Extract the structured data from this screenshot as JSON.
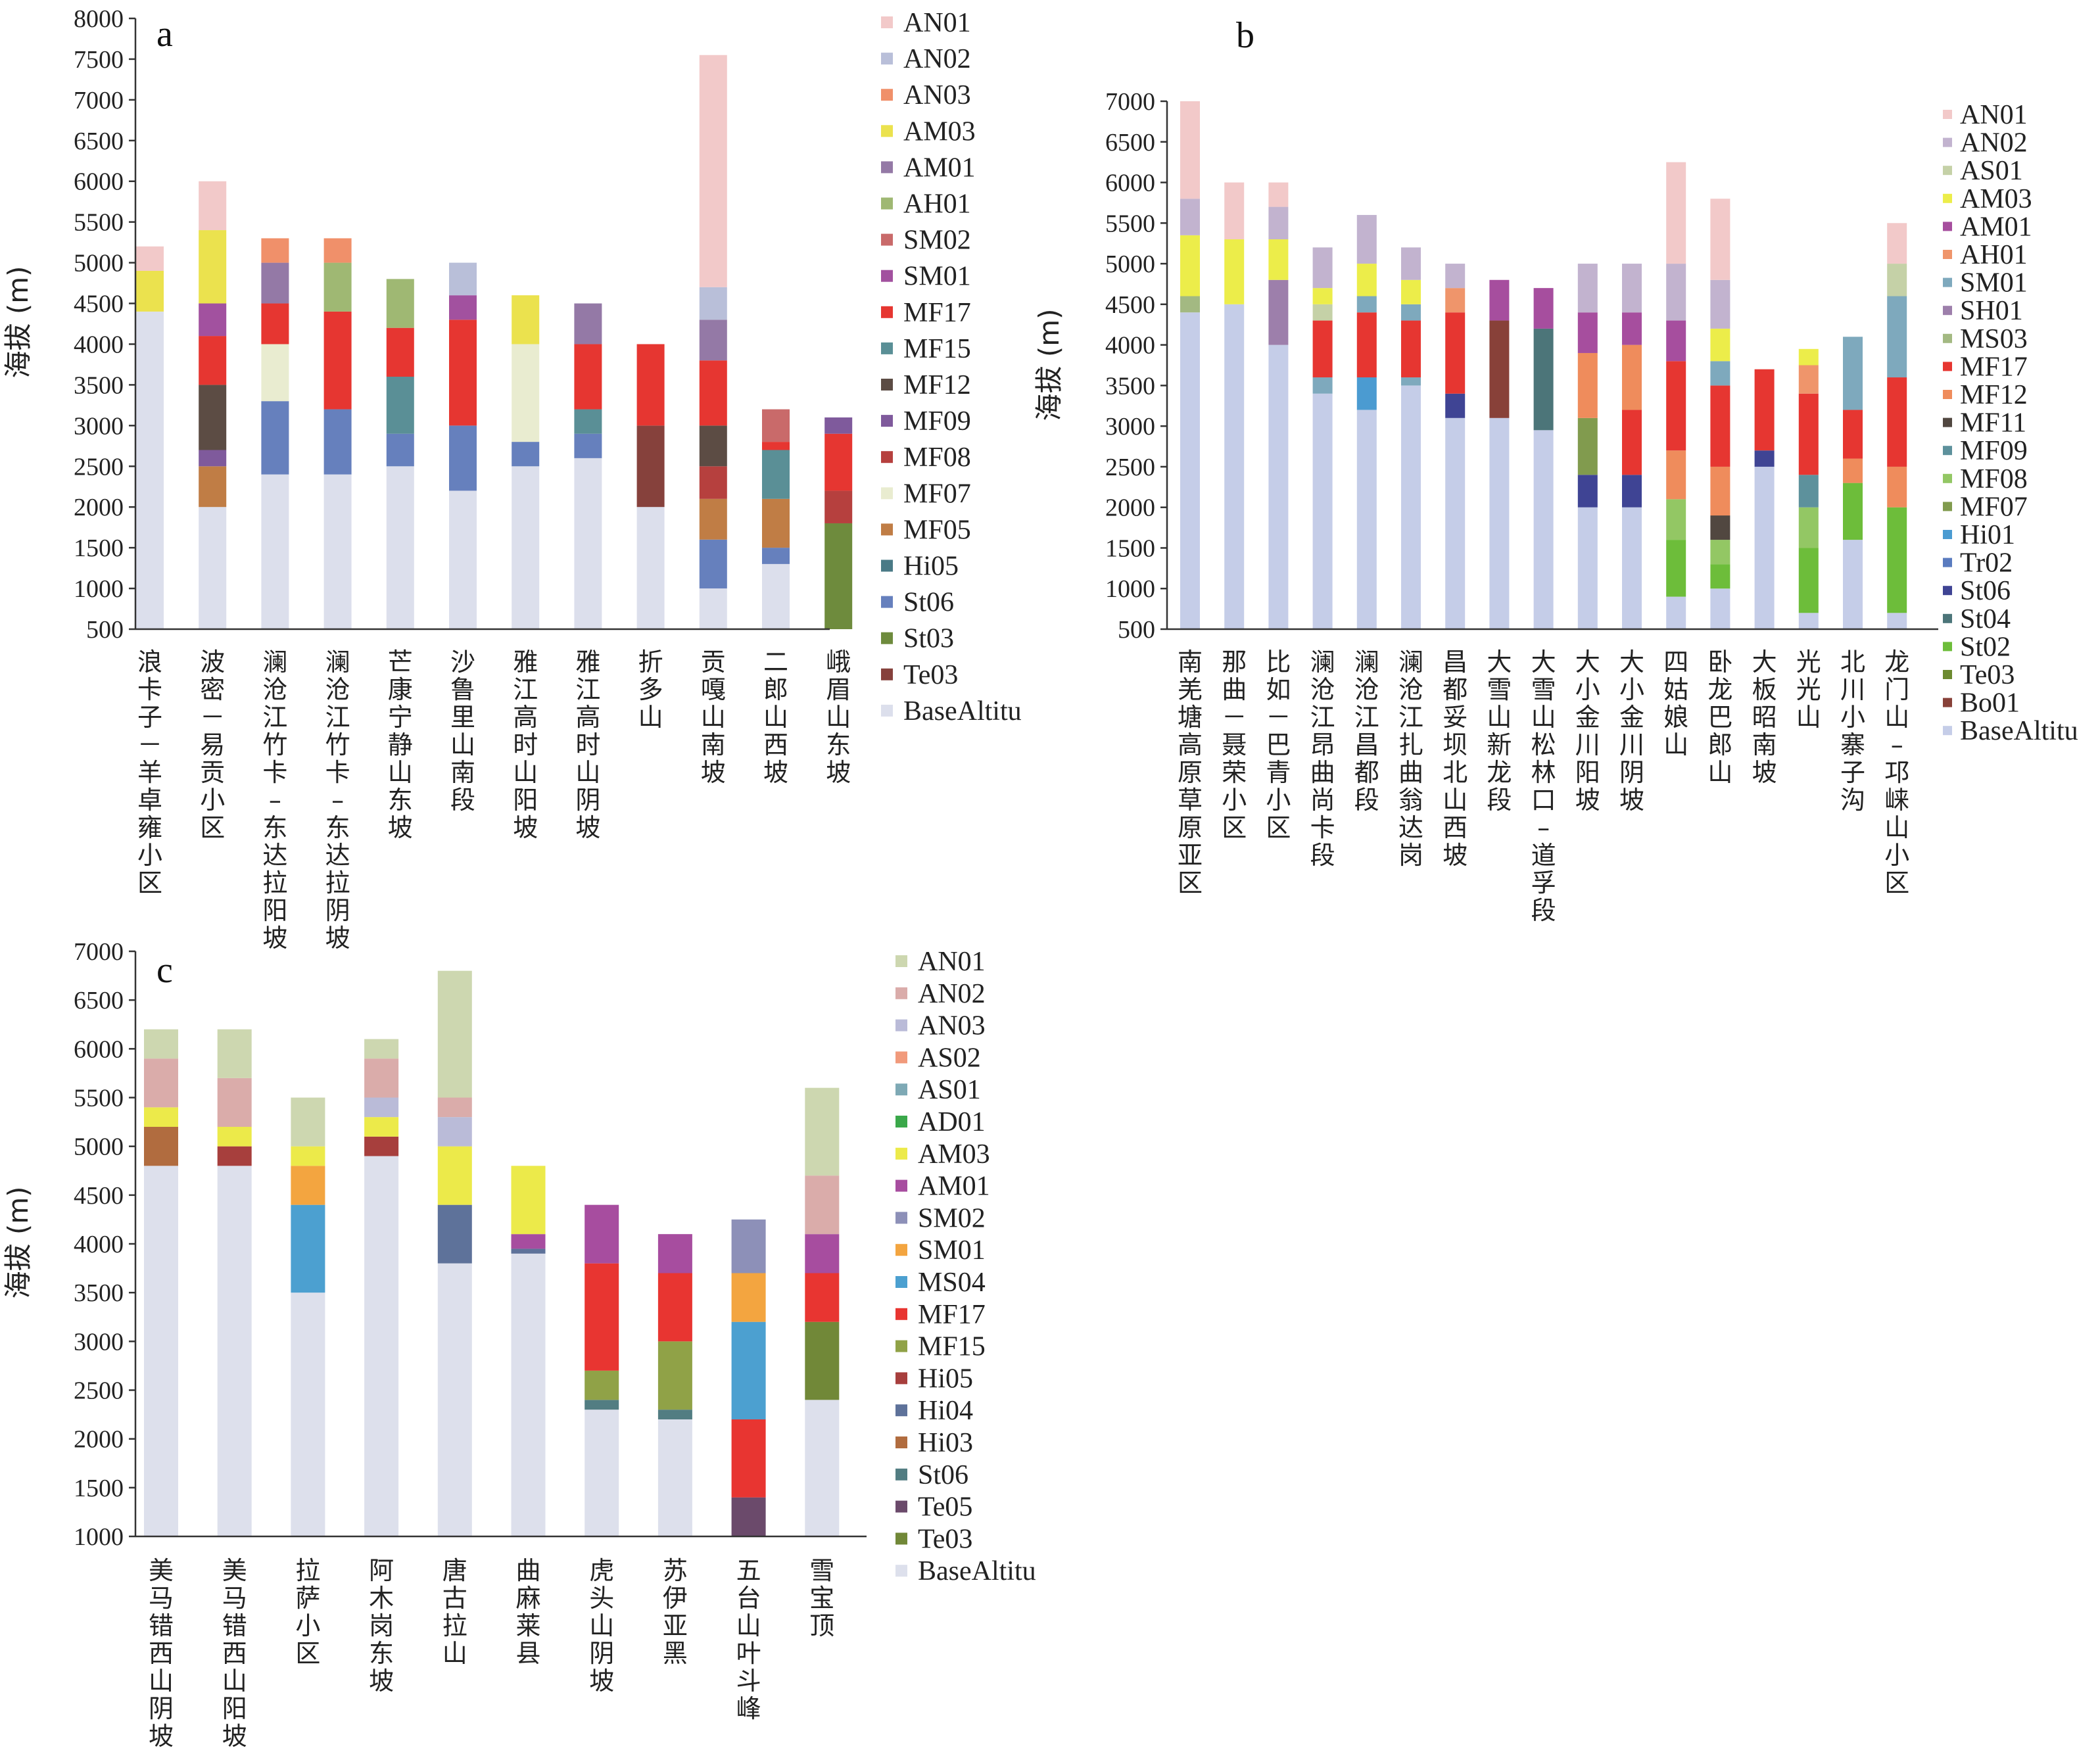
{
  "chart_data": [
    {
      "type": "bar",
      "stacked": true,
      "panel": "a",
      "ylabel": "海拔 (m)",
      "ylim": [
        500,
        8000
      ],
      "yticks": [
        500,
        1000,
        1500,
        2000,
        2500,
        3000,
        3500,
        4000,
        4500,
        5000,
        5500,
        6000,
        6500,
        7000,
        7500,
        8000
      ],
      "categories": [
        "浪卡子－羊卓雍小区",
        "波密－易贡小区",
        "澜沧江竹卡–东达拉阳坡",
        "澜沧江竹卡–东达拉阴坡",
        "芒康宁静山东坡",
        "沙鲁里山南段",
        "雅江高时山阳坡",
        "雅江高时山阴坡",
        "折多山",
        "贡嘎山南坡",
        "二郎山西坡",
        "峨眉山东坡"
      ],
      "legend": [
        "AN01",
        "AN02",
        "AN03",
        "AM03",
        "AM01",
        "AH01",
        "SM02",
        "SM01",
        "MF17",
        "MF15",
        "MF12",
        "MF09",
        "MF08",
        "MF07",
        "MF05",
        "Hi05",
        "St06",
        "St03",
        "Te03",
        "BaseAltitu"
      ],
      "colors": {
        "AN01": "#f2c9c9",
        "AN02": "#b9bfd9",
        "AN03": "#f0906a",
        "AM03": "#ebe24e",
        "AM01": "#9479a6",
        "AH01": "#9fb873",
        "SM02": "#c96a6a",
        "SM01": "#a2519f",
        "MF17": "#e63631",
        "MF15": "#5a8f96",
        "MF12": "#5c4c44",
        "MF09": "#7f5a9c",
        "MF08": "#b6403e",
        "MF07": "#e9ecd0",
        "MF05": "#c07d45",
        "Hi05": "#4a7a86",
        "St06": "#6680bd",
        "St03": "#6e8b3d",
        "Te03": "#86413c",
        "BaseAltitu": "#dcdfec"
      },
      "stacks": [
        [
          [
            "BaseAltitu",
            4400
          ],
          [
            "AM03",
            4900
          ],
          [
            "AN01",
            5200
          ]
        ],
        [
          [
            "BaseAltitu",
            2000
          ],
          [
            "MF05",
            2500
          ],
          [
            "MF09",
            2700
          ],
          [
            "MF12",
            3500
          ],
          [
            "MF17",
            4100
          ],
          [
            "SM01",
            4500
          ],
          [
            "AM03",
            5400
          ],
          [
            "AN01",
            6000
          ]
        ],
        [
          [
            "BaseAltitu",
            2400
          ],
          [
            "St06",
            3300
          ],
          [
            "MF07",
            4000
          ],
          [
            "MF17",
            4500
          ],
          [
            "AM01",
            5000
          ],
          [
            "AN03",
            5300
          ]
        ],
        [
          [
            "BaseAltitu",
            2400
          ],
          [
            "St06",
            3200
          ],
          [
            "MF17",
            4400
          ],
          [
            "AH01",
            5000
          ],
          [
            "AN03",
            5300
          ]
        ],
        [
          [
            "BaseAltitu",
            2500
          ],
          [
            "St06",
            2900
          ],
          [
            "MF15",
            3600
          ],
          [
            "MF17",
            4200
          ],
          [
            "AH01",
            4800
          ]
        ],
        [
          [
            "BaseAltitu",
            2200
          ],
          [
            "St06",
            3000
          ],
          [
            "MF17",
            4300
          ],
          [
            "SM01",
            4600
          ],
          [
            "AN02",
            5000
          ]
        ],
        [
          [
            "BaseAltitu",
            2500
          ],
          [
            "St06",
            2800
          ],
          [
            "MF07",
            4000
          ],
          [
            "AM03",
            4600
          ]
        ],
        [
          [
            "BaseAltitu",
            2600
          ],
          [
            "St06",
            2900
          ],
          [
            "MF15",
            3200
          ],
          [
            "MF17",
            4000
          ],
          [
            "AM01",
            4500
          ]
        ],
        [
          [
            "BaseAltitu",
            2000
          ],
          [
            "Te03",
            3000
          ],
          [
            "MF17",
            4000
          ]
        ],
        [
          [
            "BaseAltitu",
            1000
          ],
          [
            "St06",
            1600
          ],
          [
            "MF05",
            2100
          ],
          [
            "MF08",
            2500
          ],
          [
            "MF12",
            3000
          ],
          [
            "MF17",
            3800
          ],
          [
            "AM01",
            4300
          ],
          [
            "AN02",
            4700
          ],
          [
            "AN01",
            7550
          ]
        ],
        [
          [
            "BaseAltitu",
            1300
          ],
          [
            "St06",
            1500
          ],
          [
            "MF05",
            2100
          ],
          [
            "MF15",
            2700
          ],
          [
            "MF17",
            2800
          ],
          [
            "SM02",
            3200
          ]
        ],
        [
          [
            "St03",
            1800
          ],
          [
            "MF08",
            2200
          ],
          [
            "MF17",
            2900
          ],
          [
            "MF09",
            3100
          ]
        ]
      ]
    },
    {
      "type": "bar",
      "stacked": true,
      "panel": "b",
      "ylabel": "海拔 (m)",
      "ylim": [
        500,
        7000
      ],
      "yticks": [
        500,
        1000,
        1500,
        2000,
        2500,
        3000,
        3500,
        4000,
        4500,
        5000,
        5500,
        6000,
        6500,
        7000
      ],
      "categories": [
        "南羌塘高原草原亚区",
        "那曲－聂荣小区",
        "比如－巴青小区",
        "澜沧江昂曲尚卡段",
        "澜沧江昌都段",
        "澜沧江扎曲翁达岗",
        "昌都妥坝北山西坡",
        "大雪山新龙段",
        "大雪山松林口–道孚段",
        "大小金川阳坡",
        "大小金川阴坡",
        "四姑娘山",
        "卧龙巴郎山",
        "大板昭南坡",
        "光光山",
        "北川小寨子沟",
        "龙门山–邛崃山小区"
      ],
      "legend": [
        "AN01",
        "AN02",
        "AS01",
        "AM03",
        "AM01",
        "AH01",
        "SM01",
        "SH01",
        "MS03",
        "MF17",
        "MF12",
        "MF11",
        "MF09",
        "MF08",
        "MF07",
        "Hi01",
        "Tr02",
        "St06",
        "St04",
        "St02",
        "Te03",
        "Bo01",
        "BaseAltitu"
      ],
      "colors": {
        "AN01": "#f2c9c9",
        "AN02": "#c2b3cf",
        "AS01": "#c5d1a7",
        "AM03": "#eced4a",
        "AM01": "#a64e9e",
        "AH01": "#ef956b",
        "SM01": "#7ea9bd",
        "SH01": "#9d7fab",
        "MS03": "#a3b982",
        "MF17": "#e63631",
        "MF12": "#ef8c5c",
        "MF11": "#514740",
        "MF09": "#5d919c",
        "MF08": "#93c764",
        "MF07": "#819b4e",
        "Hi01": "#4b9bd1",
        "Tr02": "#5a7bbf",
        "St06": "#3f4494",
        "St04": "#4c7579",
        "St02": "#6dbd3a",
        "Te03": "#6c8a30",
        "Bo01": "#884139",
        "BaseAltitu": "#c5cde8"
      },
      "stacks": [
        [
          [
            "BaseAltitu",
            4400
          ],
          [
            "MS03",
            4600
          ],
          [
            "AM03",
            5350
          ],
          [
            "AN02",
            5800
          ],
          [
            "AN01",
            7000
          ]
        ],
        [
          [
            "BaseAltitu",
            4500
          ],
          [
            "AM03",
            5300
          ],
          [
            "AN01",
            6000
          ]
        ],
        [
          [
            "BaseAltitu",
            4000
          ],
          [
            "SH01",
            4800
          ],
          [
            "AM03",
            5300
          ],
          [
            "AN02",
            5700
          ],
          [
            "AN01",
            6000
          ]
        ],
        [
          [
            "BaseAltitu",
            3400
          ],
          [
            "SM01",
            3600
          ],
          [
            "MF17",
            4300
          ],
          [
            "AS01",
            4500
          ],
          [
            "AM03",
            4700
          ],
          [
            "AN02",
            5200
          ]
        ],
        [
          [
            "BaseAltitu",
            3200
          ],
          [
            "Hi01",
            3600
          ],
          [
            "MF17",
            4400
          ],
          [
            "SM01",
            4600
          ],
          [
            "AM03",
            5000
          ],
          [
            "AN02",
            5600
          ]
        ],
        [
          [
            "BaseAltitu",
            3500
          ],
          [
            "SM01",
            3600
          ],
          [
            "MF17",
            4300
          ],
          [
            "SM01",
            4500
          ],
          [
            "AM03",
            4800
          ],
          [
            "AN02",
            5200
          ]
        ],
        [
          [
            "BaseAltitu",
            3100
          ],
          [
            "St06",
            3400
          ],
          [
            "MF17",
            4400
          ],
          [
            "AH01",
            4700
          ],
          [
            "AN02",
            5000
          ]
        ],
        [
          [
            "BaseAltitu",
            3100
          ],
          [
            "Bo01",
            4300
          ],
          [
            "AM01",
            4800
          ]
        ],
        [
          [
            "BaseAltitu",
            2950
          ],
          [
            "St04",
            4200
          ],
          [
            "AM01",
            4700
          ]
        ],
        [
          [
            "BaseAltitu",
            2000
          ],
          [
            "St06",
            2400
          ],
          [
            "MF07",
            3100
          ],
          [
            "MF12",
            3900
          ],
          [
            "AM01",
            4400
          ],
          [
            "AN02",
            5000
          ]
        ],
        [
          [
            "BaseAltitu",
            2000
          ],
          [
            "St06",
            2400
          ],
          [
            "MF17",
            3200
          ],
          [
            "MF12",
            4000
          ],
          [
            "AM01",
            4400
          ],
          [
            "AN02",
            5000
          ]
        ],
        [
          [
            "BaseAltitu",
            900
          ],
          [
            "St02",
            1600
          ],
          [
            "MF08",
            2100
          ],
          [
            "MF12",
            2700
          ],
          [
            "MF17",
            3800
          ],
          [
            "AM01",
            4300
          ],
          [
            "AN02",
            5000
          ],
          [
            "AN01",
            6250
          ]
        ],
        [
          [
            "BaseAltitu",
            1000
          ],
          [
            "St02",
            1300
          ],
          [
            "MF08",
            1600
          ],
          [
            "MF11",
            1900
          ],
          [
            "MF12",
            2500
          ],
          [
            "MF17",
            3500
          ],
          [
            "SM01",
            3800
          ],
          [
            "AM03",
            4200
          ],
          [
            "AN02",
            4800
          ],
          [
            "AN01",
            5800
          ]
        ],
        [
          [
            "BaseAltitu",
            2500
          ],
          [
            "St06",
            2700
          ],
          [
            "MF17",
            3700
          ]
        ],
        [
          [
            "BaseAltitu",
            700
          ],
          [
            "St02",
            1500
          ],
          [
            "MF08",
            2000
          ],
          [
            "MF09",
            2400
          ],
          [
            "MF17",
            3400
          ],
          [
            "AH01",
            3750
          ],
          [
            "AM03",
            3950
          ]
        ],
        [
          [
            "BaseAltitu",
            1600
          ],
          [
            "St02",
            2300
          ],
          [
            "MF12",
            2600
          ],
          [
            "MF17",
            3200
          ],
          [
            "SM01",
            4100
          ]
        ],
        [
          [
            "BaseAltitu",
            700
          ],
          [
            "St02",
            2000
          ],
          [
            "MF12",
            2500
          ],
          [
            "MF17",
            3600
          ],
          [
            "SM01",
            4600
          ],
          [
            "AS01",
            5000
          ],
          [
            "AN01",
            5500
          ]
        ]
      ]
    },
    {
      "type": "bar",
      "stacked": true,
      "panel": "c",
      "ylabel": "海拔 (m)",
      "ylim": [
        1000,
        7000
      ],
      "yticks": [
        1000,
        1500,
        2000,
        2500,
        3000,
        3500,
        4000,
        4500,
        5000,
        5500,
        6000,
        6500,
        7000
      ],
      "categories": [
        "美马错西山阴坡",
        "美马错西山阳坡",
        "拉萨小区",
        "阿木岗东坡",
        "唐古拉山",
        "曲麻莱县",
        "虎头山阴坡",
        "苏伊亚黑",
        "五台山叶斗峰",
        "雪宝顶"
      ],
      "legend": [
        "AN01",
        "AN02",
        "AN03",
        "AS02",
        "AS01",
        "AD01",
        "AM03",
        "AM01",
        "SM02",
        "SM01",
        "MS04",
        "MF17",
        "MF15",
        "Hi05",
        "Hi04",
        "Hi03",
        "St06",
        "Te05",
        "Te03",
        "BaseAltitu"
      ],
      "colors": {
        "AN01": "#cdd7b0",
        "AN02": "#daacaa",
        "AN03": "#babbd8",
        "AS02": "#f19a7b",
        "AS01": "#7ea9b5",
        "AD01": "#3aa84a",
        "AM03": "#ecea4a",
        "AM01": "#a74d9f",
        "SM02": "#8d90b8",
        "SM01": "#f3a540",
        "MS04": "#4ca0d0",
        "MF17": "#e83531",
        "MF15": "#90a247",
        "Hi05": "#a73f3d",
        "Hi04": "#5e729a",
        "Hi03": "#b16c3f",
        "St06": "#527d82",
        "Te05": "#6b4a6b",
        "Te03": "#718838",
        "BaseAltitu": "#dde0ec"
      },
      "stacks": [
        [
          [
            "BaseAltitu",
            4800
          ],
          [
            "Hi03",
            5200
          ],
          [
            "AM03",
            5400
          ],
          [
            "AN02",
            5900
          ],
          [
            "AN01",
            6200
          ]
        ],
        [
          [
            "BaseAltitu",
            4800
          ],
          [
            "Hi05",
            5000
          ],
          [
            "AM03",
            5200
          ],
          [
            "AN02",
            5700
          ],
          [
            "AN01",
            6200
          ]
        ],
        [
          [
            "BaseAltitu",
            3500
          ],
          [
            "MS04",
            4400
          ],
          [
            "SM01",
            4800
          ],
          [
            "AM03",
            5000
          ],
          [
            "AN01",
            5500
          ]
        ],
        [
          [
            "BaseAltitu",
            4900
          ],
          [
            "Hi05",
            5100
          ],
          [
            "AM03",
            5300
          ],
          [
            "AN03",
            5500
          ],
          [
            "AN02",
            5900
          ],
          [
            "AN01",
            6100
          ]
        ],
        [
          [
            "BaseAltitu",
            3800
          ],
          [
            "Hi04",
            4400
          ],
          [
            "AM03",
            5000
          ],
          [
            "AN03",
            5300
          ],
          [
            "AN02",
            5500
          ],
          [
            "AN01",
            6800
          ]
        ],
        [
          [
            "BaseAltitu",
            3900
          ],
          [
            "Hi04",
            3950
          ],
          [
            "AM01",
            4100
          ],
          [
            "AM03",
            4800
          ]
        ],
        [
          [
            "BaseAltitu",
            2300
          ],
          [
            "St06",
            2400
          ],
          [
            "MF15",
            2700
          ],
          [
            "MF17",
            3800
          ],
          [
            "AM01",
            4400
          ]
        ],
        [
          [
            "BaseAltitu",
            2200
          ],
          [
            "St06",
            2300
          ],
          [
            "MF15",
            3000
          ],
          [
            "MF17",
            3700
          ],
          [
            "AM01",
            4100
          ]
        ],
        [
          [
            "Te05",
            1400
          ],
          [
            "MF17",
            2200
          ],
          [
            "MS04",
            3200
          ],
          [
            "SM01",
            3700
          ],
          [
            "SM02",
            4250
          ]
        ],
        [
          [
            "BaseAltitu",
            2400
          ],
          [
            "Te03",
            3200
          ],
          [
            "MF17",
            3700
          ],
          [
            "AM01",
            4100
          ],
          [
            "AN02",
            4700
          ],
          [
            "AN01",
            5600
          ]
        ]
      ]
    }
  ]
}
